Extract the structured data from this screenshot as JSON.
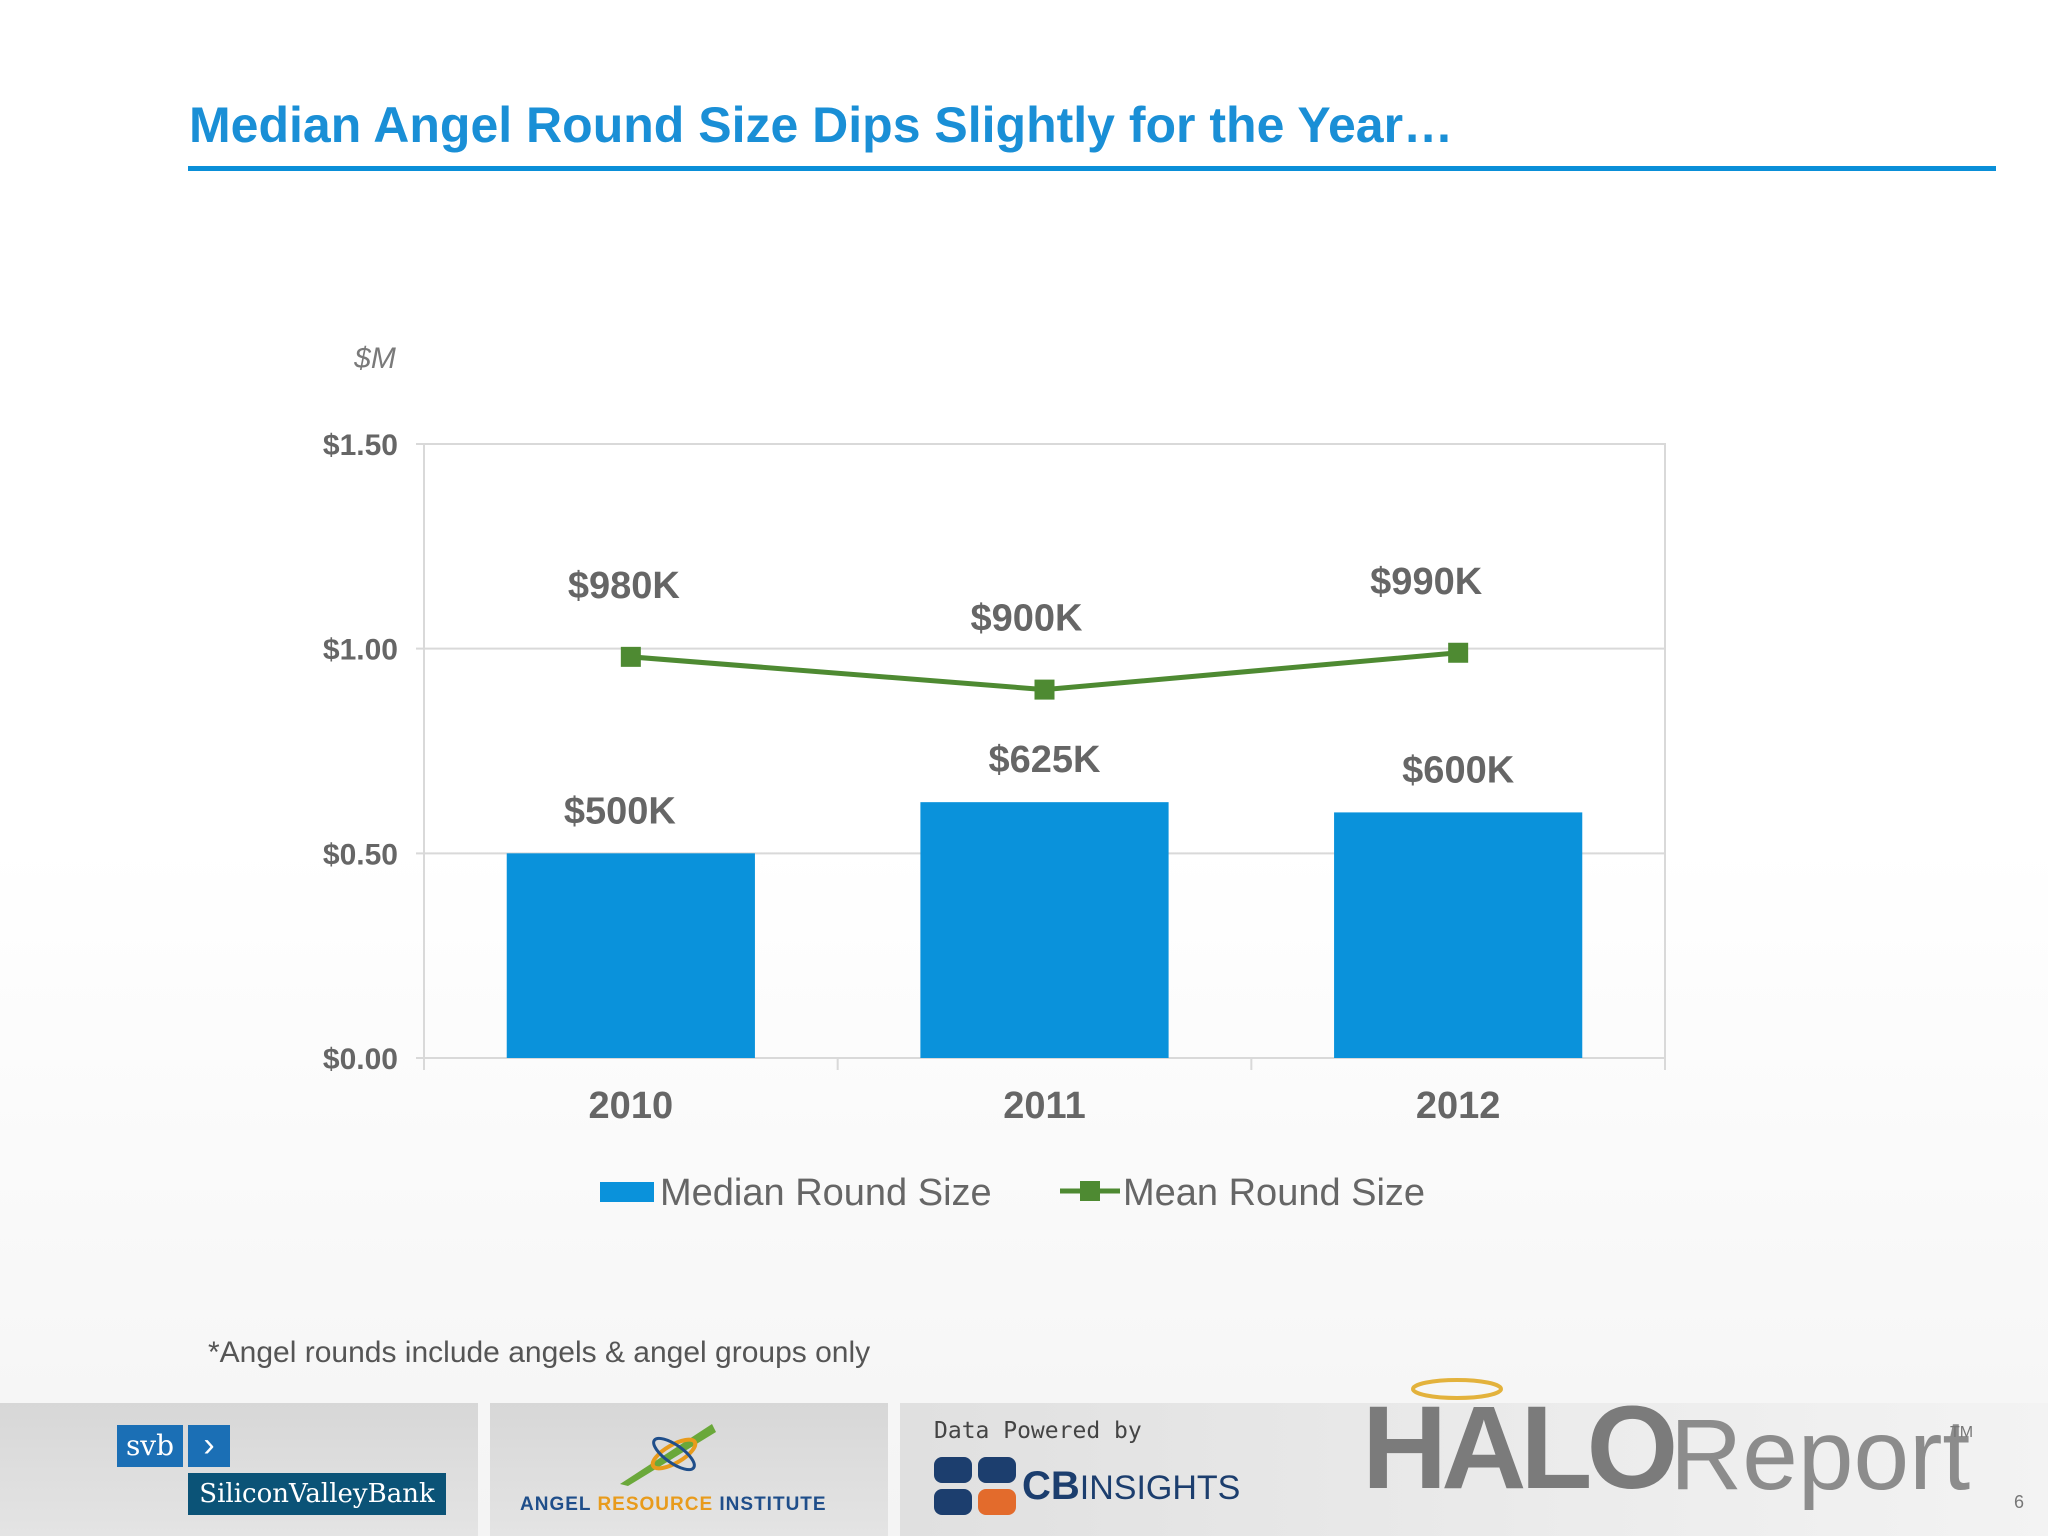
{
  "slide": {
    "title": "Median Angel Round Size Dips Slightly for the Year…",
    "footnote": "*Angel rounds include angels & angel groups only",
    "page_number": "6"
  },
  "colors": {
    "title": "#1a8fd6",
    "bar": "#0a92db",
    "line": "#4e8a32",
    "text": "#666666"
  },
  "chart_data": {
    "type": "bar",
    "title": "",
    "unit_label": "$M",
    "categories": [
      "2010",
      "2011",
      "2012"
    ],
    "ylim": [
      0,
      1.5
    ],
    "y_ticks": [
      0,
      0.5,
      1.0,
      1.5
    ],
    "y_tick_labels": [
      "$0.00",
      "$0.50",
      "$1.00",
      "$1.50"
    ],
    "grid": true,
    "legend_position": "bottom",
    "series": [
      {
        "name": "Median Round Size",
        "type": "bar",
        "values": [
          0.5,
          0.625,
          0.6
        ],
        "labels": [
          "$500K",
          "$625K",
          "$600K"
        ]
      },
      {
        "name": "Mean Round Size",
        "type": "line",
        "values": [
          0.98,
          0.9,
          0.99
        ],
        "labels": [
          "$980K",
          "$900K",
          "$990K"
        ]
      }
    ]
  },
  "footer": {
    "svb_short": "svb",
    "svb_name": "SiliconValleyBank",
    "ari_part1": "ANGEL ",
    "ari_part2": "RESOURCE",
    "ari_part3": " INSTITUTE",
    "cb_powered": "Data Powered by",
    "cb_bold": "CB",
    "cb_thin": "INSIGHTS",
    "halo_word": "HALO",
    "report_word": "Report",
    "tm": "TM"
  }
}
